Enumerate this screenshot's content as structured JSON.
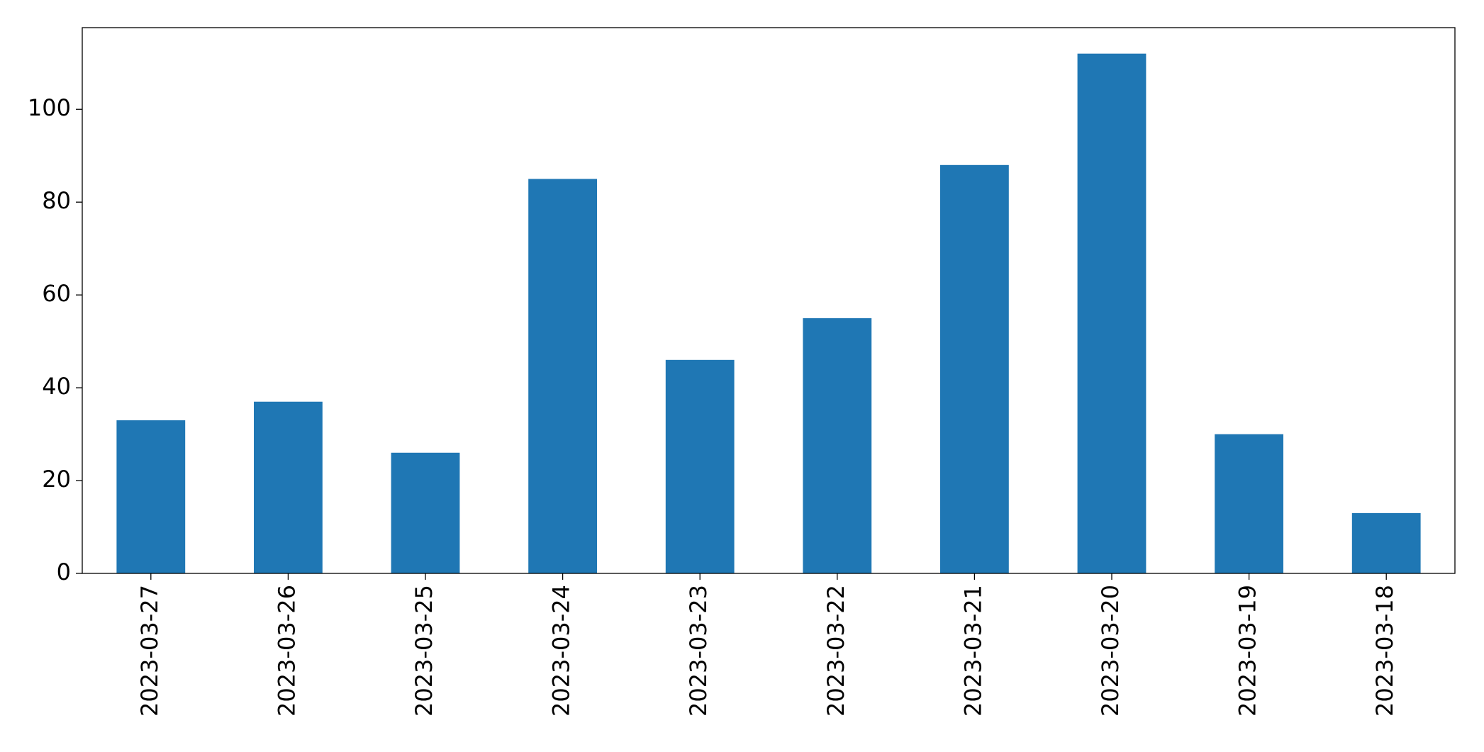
{
  "chart_data": {
    "type": "bar",
    "categories": [
      "2023-03-27",
      "2023-03-26",
      "2023-03-25",
      "2023-03-24",
      "2023-03-23",
      "2023-03-22",
      "2023-03-21",
      "2023-03-20",
      "2023-03-19",
      "2023-03-18"
    ],
    "values": [
      33,
      37,
      26,
      85,
      46,
      55,
      88,
      112,
      30,
      13
    ],
    "color": "#1f77b4",
    "ylim": [
      0,
      117.6
    ],
    "yticks": [
      0,
      20,
      40,
      60,
      80,
      100
    ],
    "grid": false
  }
}
